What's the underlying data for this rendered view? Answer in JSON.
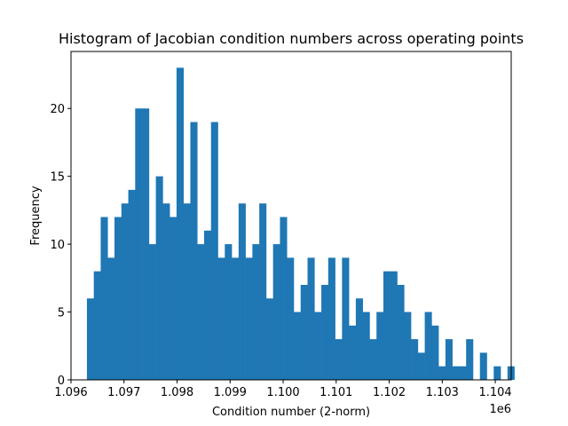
{
  "chart_data": {
    "type": "bar",
    "title": "Histogram of Jacobian condition numbers across operating points",
    "xlabel": "Condition number (2-norm)",
    "ylabel": "Frequency",
    "x_offset_label": "1e6",
    "xlim": [
      1096000,
      1104300
    ],
    "ylim": [
      0,
      24.2
    ],
    "bin_start": 1096300,
    "bin_width": 130,
    "values": [
      6,
      8,
      12,
      9,
      12,
      13,
      14,
      20,
      20,
      10,
      15,
      13,
      12,
      23,
      13,
      19,
      10,
      11,
      19,
      9,
      10,
      9,
      13,
      9,
      10,
      13,
      6,
      10,
      12,
      9,
      5,
      7,
      9,
      5,
      7,
      9,
      3,
      9,
      4,
      6,
      5,
      3,
      5,
      8,
      8,
      7,
      5,
      3,
      2,
      5,
      4,
      1,
      3,
      1,
      1,
      3,
      0,
      2,
      0,
      1,
      0,
      1
    ],
    "x_ticks": [
      {
        "value": 1096000,
        "label": "1.096"
      },
      {
        "value": 1097000,
        "label": "1.097"
      },
      {
        "value": 1098000,
        "label": "1.098"
      },
      {
        "value": 1099000,
        "label": "1.099"
      },
      {
        "value": 1100000,
        "label": "1.100"
      },
      {
        "value": 1101000,
        "label": "1.101"
      },
      {
        "value": 1102000,
        "label": "1.102"
      },
      {
        "value": 1103000,
        "label": "1.103"
      },
      {
        "value": 1104000,
        "label": "1.104"
      }
    ],
    "y_ticks": [
      {
        "value": 0,
        "label": "0"
      },
      {
        "value": 5,
        "label": "5"
      },
      {
        "value": 10,
        "label": "10"
      },
      {
        "value": 15,
        "label": "15"
      },
      {
        "value": 20,
        "label": "20"
      }
    ],
    "bar_color": "#1f77b4",
    "grid": false,
    "legend": false
  }
}
